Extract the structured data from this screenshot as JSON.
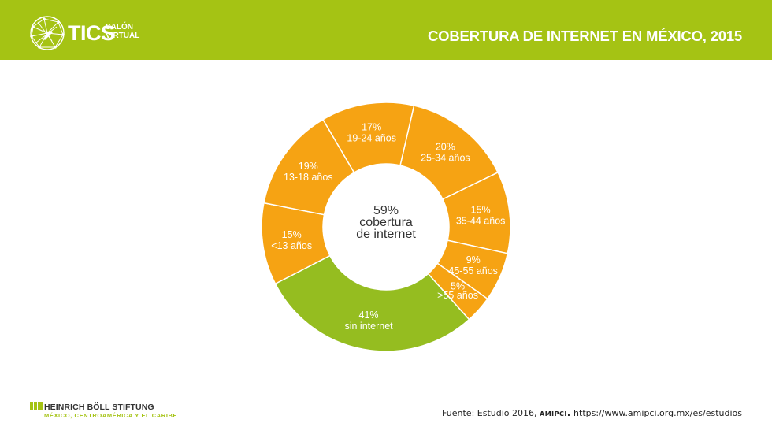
{
  "header": {
    "logo_text": "TICS",
    "logo_sub_line1": "SALÓN",
    "logo_sub_line2": "VIRTUAL",
    "title": "COBERTURA DE INTERNET EN MÉXICO, 2015"
  },
  "colors": {
    "header_green": "#a5c314",
    "orange": "#f6a313",
    "green": "#95bd20"
  },
  "chart_data": {
    "type": "pie",
    "donut": true,
    "center_label": [
      "59%",
      "cobertura",
      "de internet"
    ],
    "slices": [
      {
        "pct_label": "20%",
        "label": "25-34 años",
        "value": 20,
        "group": "con internet"
      },
      {
        "pct_label": "15%",
        "label": "35-44 años",
        "value": 15,
        "group": "con internet"
      },
      {
        "pct_label": "9%",
        "label": "45-55 años",
        "value": 9,
        "group": "con internet"
      },
      {
        "pct_label": "5%",
        "label": ">55 años",
        "value": 5,
        "group": "con internet"
      },
      {
        "pct_label": "41%",
        "label": "sin internet",
        "value": 41,
        "group": "sin internet"
      },
      {
        "pct_label": "15%",
        "label": "<13 años",
        "value": 15,
        "group": "con internet"
      },
      {
        "pct_label": "19%",
        "label": "13-18 años",
        "value": 19,
        "group": "con internet"
      },
      {
        "pct_label": "17%",
        "label": "19-24 años",
        "value": 17,
        "group": "con internet"
      }
    ]
  },
  "footer": {
    "org_name": "HEINRICH BÖLL STIFTUNG",
    "org_region": "MÉXICO, CENTROAMÉRICA Y EL CARIBE",
    "source_prefix": "Fuente: Estudio 2016,",
    "source_org": "amipci.",
    "source_url": "https://www.amipci.org.mx/es/estudios"
  }
}
